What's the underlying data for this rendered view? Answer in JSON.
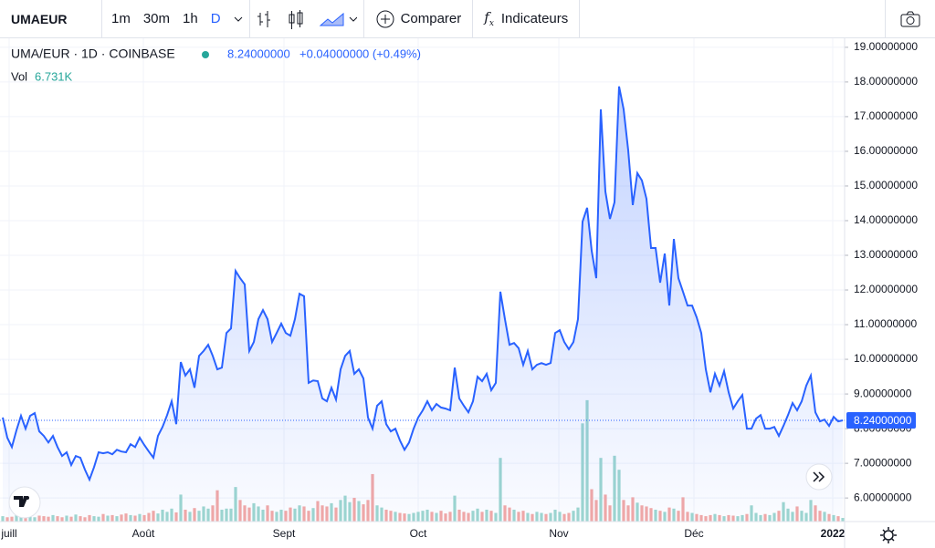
{
  "toolbar": {
    "symbol": "UMAEUR",
    "intervals": [
      "1m",
      "30m",
      "1h",
      "D"
    ],
    "compare": "Comparer",
    "indicators": "Indicateurs"
  },
  "legend": {
    "title": "UMA/EUR · 1D · COINBASE",
    "price": "8.24000000",
    "change": "+0.04000000 (+0.49%)",
    "volume_label": "Vol",
    "volume_value": "6.731K"
  },
  "chart_data": {
    "type": "area",
    "color": "#2962ff",
    "values": [
      8.32,
      7.74,
      7.47,
      7.95,
      8.37,
      8.0,
      8.37,
      8.45,
      7.92,
      7.79,
      7.6,
      7.79,
      7.47,
      7.21,
      7.32,
      6.95,
      7.21,
      7.16,
      6.82,
      6.53,
      6.89,
      7.32,
      7.29,
      7.32,
      7.26,
      7.39,
      7.34,
      7.32,
      7.55,
      7.47,
      7.74,
      7.53,
      7.34,
      7.16,
      7.79,
      8.05,
      8.39,
      8.79,
      8.13,
      9.92,
      9.53,
      9.71,
      9.18,
      10.1,
      10.24,
      10.42,
      10.1,
      9.71,
      9.76,
      10.76,
      10.89,
      12.55,
      12.34,
      12.16,
      10.24,
      10.5,
      11.16,
      11.42,
      11.16,
      10.5,
      10.76,
      11.03,
      10.76,
      10.68,
      11.16,
      11.89,
      11.82,
      9.32,
      9.39,
      9.37,
      8.87,
      8.79,
      9.18,
      8.84,
      9.71,
      10.1,
      10.24,
      9.58,
      9.71,
      9.45,
      8.32,
      8.0,
      8.66,
      8.79,
      8.13,
      7.92,
      8.0,
      7.66,
      7.39,
      7.6,
      8.0,
      8.32,
      8.53,
      8.79,
      8.53,
      8.71,
      8.61,
      8.58,
      8.53,
      9.76,
      8.87,
      8.66,
      8.47,
      8.79,
      9.5,
      9.37,
      9.58,
      9.11,
      9.32,
      11.95,
      11.16,
      10.42,
      10.47,
      10.32,
      9.84,
      10.24,
      9.71,
      9.84,
      9.89,
      9.84,
      9.89,
      10.76,
      10.84,
      10.5,
      10.29,
      10.5,
      11.16,
      13.97,
      14.37,
      13.13,
      12.34,
      17.21,
      14.84,
      14.05,
      14.53,
      17.87,
      17.21,
      16.03,
      14.45,
      15.37,
      15.16,
      14.63,
      13.21,
      13.21,
      12.21,
      13.05,
      11.55,
      13.47,
      12.34,
      11.95,
      11.55,
      11.55,
      11.21,
      10.76,
      9.71,
      9.05,
      9.58,
      9.24,
      9.66,
      9.05,
      8.58,
      8.79,
      8.97,
      8.0,
      8.0,
      8.29,
      8.39,
      8.0,
      8.0,
      8.05,
      7.79,
      8.08,
      8.39,
      8.74,
      8.53,
      8.79,
      9.24,
      9.53,
      8.47,
      8.21,
      8.26,
      8.08,
      8.34,
      8.21,
      8.24
    ],
    "volume": [
      10,
      8,
      9,
      12,
      10,
      14,
      9,
      8,
      11,
      10,
      9,
      12,
      10,
      8,
      11,
      9,
      13,
      10,
      8,
      12,
      10,
      9,
      14,
      11,
      12,
      10,
      13,
      15,
      12,
      11,
      14,
      12,
      16,
      20,
      15,
      22,
      18,
      24,
      17,
      50,
      22,
      18,
      25,
      20,
      28,
      24,
      30,
      58,
      22,
      24,
      24,
      64,
      40,
      30,
      26,
      34,
      28,
      22,
      30,
      20,
      18,
      22,
      20,
      26,
      24,
      30,
      28,
      20,
      25,
      38,
      30,
      28,
      34,
      26,
      40,
      48,
      36,
      44,
      38,
      32,
      40,
      88,
      30,
      26,
      22,
      20,
      18,
      16,
      15,
      14,
      16,
      18,
      20,
      22,
      18,
      16,
      20,
      15,
      18,
      48,
      22,
      18,
      16,
      20,
      24,
      18,
      22,
      20,
      16,
      118,
      30,
      26,
      22,
      18,
      20,
      16,
      14,
      18,
      16,
      14,
      16,
      22,
      18,
      14,
      16,
      20,
      26,
      182,
      225,
      60,
      40,
      118,
      50,
      30,
      122,
      96,
      40,
      30,
      45,
      35,
      30,
      28,
      25,
      22,
      20,
      18,
      26,
      24,
      20,
      45,
      18,
      16,
      14,
      12,
      10,
      12,
      14,
      12,
      10,
      12,
      11,
      10,
      12,
      14,
      30,
      16,
      12,
      14,
      12,
      16,
      20,
      36,
      24,
      18,
      28,
      20,
      16,
      40,
      30,
      20,
      18,
      14,
      12,
      10,
      6.731
    ],
    "volume_up_color": "#9ed7cf",
    "volume_down_color": "#f3a9a6",
    "volume_ylim": [
      0,
      240
    ],
    "last_value_label": "8.24000000",
    "xlim": [
      0,
      184
    ],
    "xticks": [
      {
        "value": 1.4,
        "label": "juill"
      },
      {
        "value": 30.8,
        "label": "Août"
      },
      {
        "value": 61.6,
        "label": "Sept"
      },
      {
        "value": 91,
        "label": "Oct"
      },
      {
        "value": 121.8,
        "label": "Nov"
      },
      {
        "value": 151.4,
        "label": "Déc"
      },
      {
        "value": 181.8,
        "label": "2022"
      }
    ],
    "ylim": [
      5.32,
      19.26
    ],
    "yticks": [
      {
        "value": 6,
        "label": "6.00000000"
      },
      {
        "value": 7,
        "label": "7.00000000"
      },
      {
        "value": 8,
        "label": "8.00000000"
      },
      {
        "value": 9,
        "label": "9.00000000"
      },
      {
        "value": 10,
        "label": "10.00000000"
      },
      {
        "value": 11,
        "label": "11.00000000"
      },
      {
        "value": 12,
        "label": "12.00000000"
      },
      {
        "value": 13,
        "label": "13.00000000"
      },
      {
        "value": 14,
        "label": "14.00000000"
      },
      {
        "value": 15,
        "label": "15.00000000"
      },
      {
        "value": 16,
        "label": "16.00000000"
      },
      {
        "value": 17,
        "label": "17.00000000"
      },
      {
        "value": 18,
        "label": "18.00000000"
      },
      {
        "value": 19,
        "label": "19.00000000"
      }
    ],
    "grid": true
  }
}
